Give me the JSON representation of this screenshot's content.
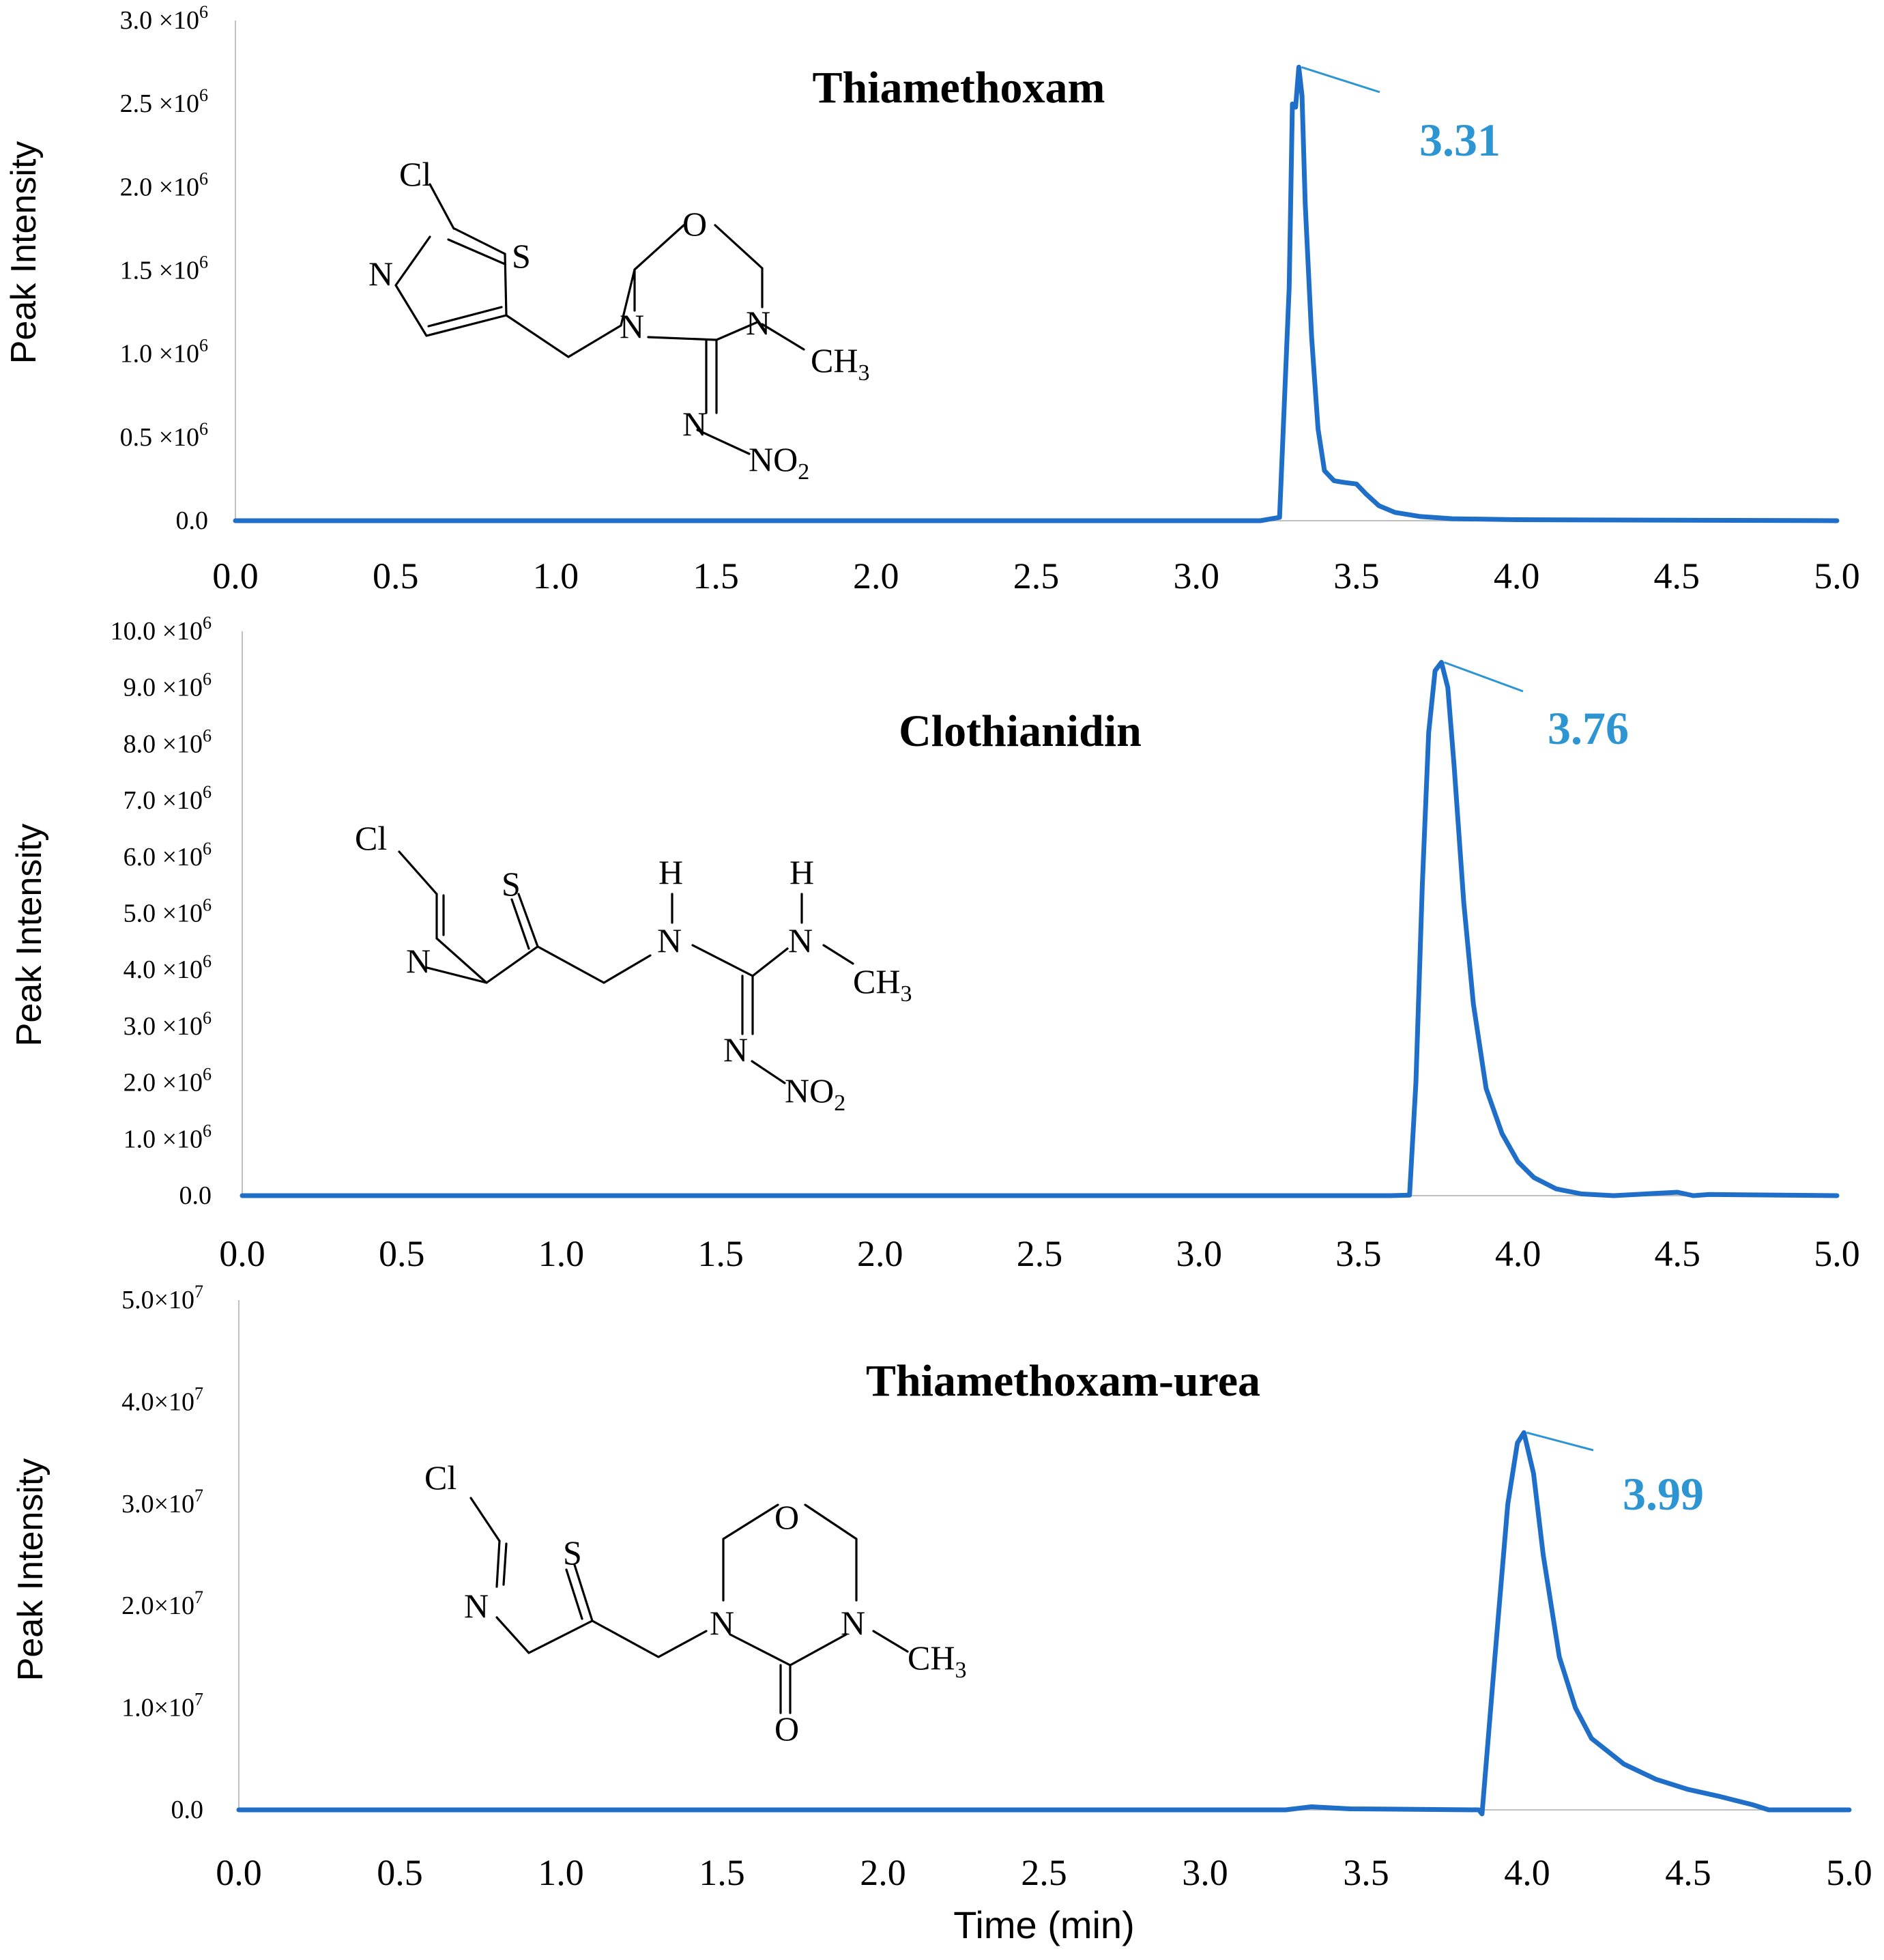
{
  "colors": {
    "trace": "#1f6fc8",
    "label": "#2e95d3"
  },
  "x_axis_label": "Time  (min)",
  "chart_data": [
    {
      "type": "line",
      "title": "Thiamethoxam",
      "xlabel": "",
      "ylabel": "Peak Intensity",
      "xlim": [
        0,
        5
      ],
      "ylim": [
        0,
        3000000
      ],
      "x_ticks": [
        "0.0",
        "0.5",
        "1.0",
        "1.5",
        "2.0",
        "2.5",
        "3.0",
        "3.5",
        "4.0",
        "4.5",
        "5.0"
      ],
      "y_ticks": [
        {
          "value": 0,
          "mant": "0.0",
          "exp": ""
        },
        {
          "value": 500000,
          "mant": "0.5 ×10",
          "exp": "6"
        },
        {
          "value": 1000000,
          "mant": "1.0 ×10",
          "exp": "6"
        },
        {
          "value": 1500000,
          "mant": "1.5 ×10",
          "exp": "6"
        },
        {
          "value": 2000000,
          "mant": "2.0 ×10",
          "exp": "6"
        },
        {
          "value": 2500000,
          "mant": "2.5 ×10",
          "exp": "6"
        },
        {
          "value": 3000000,
          "mant": "3.0 ×10",
          "exp": "6"
        }
      ],
      "peak_label": "3.31",
      "peak_rt": 3.31,
      "series": [
        {
          "name": "Thiamethoxam",
          "x": [
            0,
            3.2,
            3.26,
            3.29,
            3.3,
            3.31,
            3.32,
            3.33,
            3.34,
            3.36,
            3.38,
            3.4,
            3.43,
            3.46,
            3.5,
            3.53,
            3.57,
            3.62,
            3.7,
            3.8,
            4.0,
            4.5,
            5.0
          ],
          "y": [
            0,
            0,
            20000,
            1400000,
            2500000,
            2480000,
            2720000,
            2550000,
            1900000,
            1100000,
            550000,
            300000,
            240000,
            230000,
            220000,
            160000,
            90000,
            50000,
            25000,
            12000,
            6000,
            3000,
            0
          ]
        }
      ],
      "molecule": {
        "name": "thiamethoxam",
        "atoms": {
          "Cl": "Cl",
          "S": "S",
          "N1": "N",
          "O": "O",
          "Na": "N",
          "Nb": "N",
          "CH": "CH",
          "CH_sub": "3",
          "Nim": "N",
          "NO": "NO",
          "NO_sub": "2"
        }
      }
    },
    {
      "type": "line",
      "title": "Clothianidin",
      "xlabel": "",
      "ylabel": "Peak Intensity",
      "xlim": [
        0,
        5
      ],
      "ylim": [
        0,
        10000000
      ],
      "x_ticks": [
        "0.0",
        "0.5",
        "1.0",
        "1.5",
        "2.0",
        "2.5",
        "3.0",
        "3.5",
        "4.0",
        "4.5",
        "5.0"
      ],
      "y_ticks": [
        {
          "value": 0,
          "mant": "0.0",
          "exp": ""
        },
        {
          "value": 1000000,
          "mant": "1.0 ×10",
          "exp": "6"
        },
        {
          "value": 2000000,
          "mant": "2.0 ×10",
          "exp": "6"
        },
        {
          "value": 3000000,
          "mant": "3.0 ×10",
          "exp": "6"
        },
        {
          "value": 4000000,
          "mant": "4.0 ×10",
          "exp": "6"
        },
        {
          "value": 5000000,
          "mant": "5.0 ×10",
          "exp": "6"
        },
        {
          "value": 6000000,
          "mant": "6.0 ×10",
          "exp": "6"
        },
        {
          "value": 7000000,
          "mant": "7.0 ×10",
          "exp": "6"
        },
        {
          "value": 8000000,
          "mant": "8.0 ×10",
          "exp": "6"
        },
        {
          "value": 9000000,
          "mant": "9.0 ×10",
          "exp": "6"
        },
        {
          "value": 10000000,
          "mant": "10.0 ×10",
          "exp": "6"
        }
      ],
      "peak_label": "3.76",
      "peak_rt": 3.76,
      "series": [
        {
          "name": "Clothianidin",
          "x": [
            0,
            3.6,
            3.66,
            3.68,
            3.7,
            3.72,
            3.74,
            3.76,
            3.78,
            3.8,
            3.83,
            3.86,
            3.9,
            3.95,
            4.0,
            4.05,
            4.12,
            4.2,
            4.3,
            4.5,
            4.55,
            4.6,
            5.0
          ],
          "y": [
            0,
            0,
            10000,
            2000000,
            5500000,
            8200000,
            9300000,
            9450000,
            9000000,
            7600000,
            5200000,
            3400000,
            1900000,
            1100000,
            600000,
            320000,
            120000,
            30000,
            0,
            60000,
            0,
            20000,
            0
          ]
        }
      ],
      "molecule": {
        "name": "clothianidin",
        "atoms": {
          "Cl": "Cl",
          "S": "S",
          "N1": "N",
          "Na": "N",
          "Nb": "N",
          "Ha": "H",
          "Hb": "H",
          "CH": "CH",
          "CH_sub": "3",
          "Nim": "N",
          "NO": "NO",
          "NO_sub": "2"
        }
      }
    },
    {
      "type": "line",
      "title": "Thiamethoxam-urea",
      "xlabel": "Time  (min)",
      "ylabel": "Peak Intensity",
      "xlim": [
        0,
        5
      ],
      "ylim": [
        0,
        50000000
      ],
      "x_ticks": [
        "0.0",
        "0.5",
        "1.0",
        "1.5",
        "2.0",
        "2.5",
        "3.0",
        "3.5",
        "4.0",
        "4.5",
        "5.0"
      ],
      "y_ticks": [
        {
          "value": 0,
          "mant": "0.0",
          "exp": ""
        },
        {
          "value": 10000000,
          "mant": "1.0×10",
          "exp": "7"
        },
        {
          "value": 20000000,
          "mant": "2.0×10",
          "exp": "7"
        },
        {
          "value": 30000000,
          "mant": "3.0×10",
          "exp": "7"
        },
        {
          "value": 40000000,
          "mant": "4.0×10",
          "exp": "7"
        },
        {
          "value": 50000000,
          "mant": "5.0×10",
          "exp": "7"
        }
      ],
      "peak_label": "3.99",
      "peak_rt": 3.99,
      "series": [
        {
          "name": "Thiamethoxam-urea",
          "x": [
            0,
            3.25,
            3.33,
            3.45,
            3.85,
            3.86,
            3.9,
            3.94,
            3.97,
            3.99,
            4.02,
            4.05,
            4.1,
            4.15,
            4.2,
            4.3,
            4.4,
            4.5,
            4.6,
            4.7,
            4.75,
            4.8,
            5.0
          ],
          "y": [
            0,
            0,
            300000,
            100000,
            0,
            -400000,
            15000000,
            30000000,
            36000000,
            37000000,
            33000000,
            25000000,
            15000000,
            10000000,
            7000000,
            4500000,
            3000000,
            2000000,
            1300000,
            500000,
            0,
            0,
            0
          ]
        }
      ],
      "molecule": {
        "name": "thiamethoxam-urea",
        "atoms": {
          "Cl": "Cl",
          "S": "S",
          "N1": "N",
          "O": "O",
          "Na": "N",
          "Nb": "N",
          "CH": "CH",
          "CH_sub": "3",
          "Ocarb": "O"
        }
      }
    }
  ]
}
